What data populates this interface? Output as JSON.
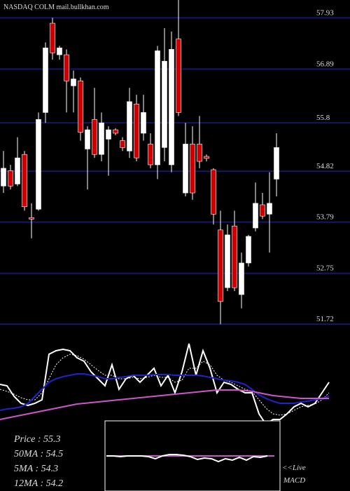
{
  "chart_data": {
    "type": "candlestick",
    "title": "NASDAQ COLM mail.bullkhan.com",
    "ylim": [
      51.68,
      58.29
    ],
    "yticks": [
      57.93,
      56.89,
      55.8,
      54.82,
      53.79,
      52.75,
      51.72
    ],
    "grid": true,
    "grid_color": "#16166a",
    "up_color": "#ffffff",
    "down_color": "#cc0000",
    "open": [
      54.52,
      54.83,
      54.56,
      55.16,
      53.88,
      54.05,
      56.01,
      57.82,
      57.18,
      57.18,
      56.55,
      56.65,
      55.27,
      55.87,
      55.16,
      55.47,
      55.66,
      55.44,
      55.23,
      56.18,
      55.59,
      55.37,
      54.95,
      55.3,
      54.95,
      57.5,
      54.38,
      55.37,
      55.37,
      55.12,
      54.85,
      53.63,
      52.46,
      53.71,
      52.32,
      52.96,
      53.67,
      54.14,
      53.95,
      54.66
    ],
    "high": [
      55.23,
      54.95,
      55.51,
      55.23,
      54.17,
      56.01,
      57.43,
      57.93,
      57.36,
      57.29,
      56.86,
      56.72,
      55.73,
      56.51,
      56.01,
      55.73,
      55.69,
      55.51,
      56.51,
      56.37,
      56.37,
      55.59,
      57.36,
      57.72,
      57.65,
      58.29,
      55.8,
      55.73,
      55.94,
      55.16,
      54.88,
      54.02,
      53.74,
      54.02,
      53.17,
      53.53,
      54.59,
      54.38,
      54.8,
      55.59
    ],
    "low": [
      54.38,
      54.45,
      54.52,
      54.02,
      53.46,
      54.02,
      55.8,
      57.08,
      57.08,
      56.01,
      56.01,
      55.44,
      54.45,
      55.09,
      55.02,
      54.73,
      55.55,
      55.23,
      55.09,
      55.02,
      55.44,
      54.88,
      54.66,
      55.02,
      54.8,
      55.94,
      54.31,
      54.24,
      54.88,
      55.02,
      53.74,
      51.72,
      52.39,
      52.39,
      52.04,
      52.89,
      53.6,
      53.85,
      53.17,
      54.31
    ],
    "close": [
      54.88,
      54.52,
      55.09,
      54.1,
      53.85,
      55.87,
      57.32,
      57.22,
      57.32,
      56.65,
      56.69,
      55.61,
      55.66,
      55.16,
      55.8,
      55.66,
      55.59,
      55.3,
      56.23,
      55.09,
      56.01,
      54.95,
      57.26,
      57.05,
      57.29,
      56.01,
      55.37,
      54.38,
      55.02,
      55.08,
      53.95,
      52.18,
      53.53,
      52.46,
      52.96,
      53.5,
      54.17,
      53.91,
      54.17,
      55.3
    ],
    "lower_panel": {
      "ylim": [
        0,
        130
      ],
      "series": [
        {
          "color": "#ffffff",
          "values": [
            52,
            50,
            35,
            25,
            22,
            25,
            30,
            95,
            100,
            102,
            100,
            90,
            85,
            70,
            60,
            50,
            80,
            45,
            60,
            65,
            55,
            65,
            75,
            50,
            65,
            40,
            70,
            110,
            65,
            100,
            75,
            40,
            55,
            52,
            45,
            40,
            40,
            10,
            -5,
            2,
            2,
            10,
            20,
            25,
            20,
            25,
            40,
            55
          ]
        },
        {
          "color": "#ffffff",
          "dashed": true,
          "values": [
            45,
            42,
            38,
            33,
            30,
            30,
            40,
            60,
            80,
            90,
            95,
            93,
            88,
            80,
            72,
            65,
            65,
            60,
            60,
            62,
            60,
            62,
            65,
            62,
            62,
            55,
            58,
            75,
            75,
            85,
            80,
            65,
            58,
            55,
            50,
            45,
            42,
            30,
            18,
            10,
            8,
            10,
            15,
            20,
            22,
            24,
            30,
            40
          ]
        },
        {
          "color": "#2222cc",
          "values": [
            15,
            17,
            18,
            20,
            25,
            35,
            45,
            55,
            60,
            63,
            65,
            67,
            67,
            65,
            63,
            60,
            60,
            62,
            63,
            65,
            65,
            65,
            66,
            66,
            66,
            65,
            65,
            65,
            65,
            64,
            62,
            60,
            58,
            57,
            55,
            52,
            45,
            37,
            32,
            28,
            25,
            25,
            25,
            27,
            28,
            30,
            32,
            35
          ]
        },
        {
          "color": "#cc55cc",
          "values": [
            2,
            4,
            6,
            8,
            10,
            12,
            14,
            16,
            18,
            20,
            22,
            24,
            25,
            26,
            27,
            28,
            29,
            30,
            31,
            32,
            33,
            34,
            35,
            36,
            37,
            38,
            39,
            40,
            41,
            42,
            43,
            44,
            44,
            44,
            44,
            43,
            42,
            40,
            38,
            36,
            35,
            34,
            33,
            32,
            32,
            32,
            32,
            32
          ]
        }
      ]
    },
    "macd_panel": {
      "ylim": [
        -50,
        50
      ],
      "series": [
        {
          "color": "#cc55cc",
          "values": [
            0,
            0,
            0,
            0,
            0,
            0,
            0,
            0,
            0,
            0,
            0,
            0,
            0,
            0,
            0,
            0,
            0,
            0,
            0,
            0,
            0,
            0,
            0,
            0,
            0
          ]
        },
        {
          "color": "#ffffff",
          "values": [
            0,
            0,
            -1,
            0,
            0,
            0,
            -1,
            -4,
            0,
            2,
            2,
            1,
            -1,
            -5,
            -3,
            -4,
            -8,
            -4,
            -6,
            -2,
            -6,
            -1,
            -2,
            0
          ]
        }
      ]
    },
    "info": [
      "Price    : 55.3",
      "50MA : 54.5",
      "5MA : 54.3",
      "12MA : 54.2"
    ],
    "live": "<<Live",
    "macd_label": "MACD"
  }
}
